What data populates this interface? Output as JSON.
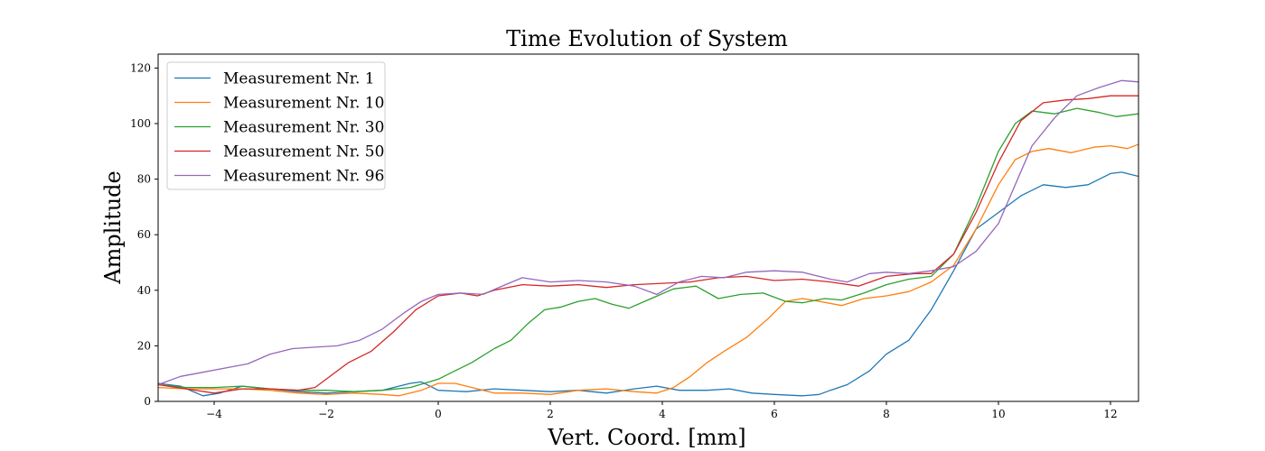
{
  "chart_data": {
    "type": "line",
    "title": "Time Evolution of System",
    "xlabel": "Vert. Coord. [mm]",
    "ylabel": "Amplitude",
    "xlim": [
      -5,
      12.5
    ],
    "ylim": [
      0,
      125
    ],
    "xticks": [
      -4,
      -2,
      0,
      2,
      4,
      6,
      8,
      10,
      12
    ],
    "yticks": [
      0,
      20,
      40,
      60,
      80,
      100,
      120
    ],
    "grid": false,
    "legend_position": "top-left",
    "series": [
      {
        "name": "Measurement Nr. 1",
        "color": "#1f77b4",
        "points": [
          [
            -5,
            6.5
          ],
          [
            -4.6,
            5.5
          ],
          [
            -4.2,
            2
          ],
          [
            -3.9,
            3
          ],
          [
            -3.5,
            5.5
          ],
          [
            -3,
            4.5
          ],
          [
            -2.5,
            3.5
          ],
          [
            -2,
            3
          ],
          [
            -1.5,
            3.5
          ],
          [
            -1,
            4
          ],
          [
            -0.5,
            6.5
          ],
          [
            -0.3,
            7
          ],
          [
            0,
            4
          ],
          [
            0.5,
            3.5
          ],
          [
            1,
            4.5
          ],
          [
            1.5,
            4
          ],
          [
            2,
            3.5
          ],
          [
            2.5,
            4
          ],
          [
            3,
            3
          ],
          [
            3.5,
            4.5
          ],
          [
            3.9,
            5.5
          ],
          [
            4.3,
            4
          ],
          [
            4.8,
            4
          ],
          [
            5.2,
            4.5
          ],
          [
            5.6,
            3
          ],
          [
            6,
            2.5
          ],
          [
            6.5,
            2
          ],
          [
            6.8,
            2.5
          ],
          [
            7,
            4
          ],
          [
            7.3,
            6
          ],
          [
            7.7,
            11
          ],
          [
            8,
            17
          ],
          [
            8.4,
            22
          ],
          [
            8.8,
            33
          ],
          [
            9.2,
            47
          ],
          [
            9.6,
            62
          ],
          [
            10,
            68
          ],
          [
            10.4,
            74
          ],
          [
            10.8,
            78
          ],
          [
            11.2,
            77
          ],
          [
            11.6,
            78
          ],
          [
            12,
            82
          ],
          [
            12.2,
            82.5
          ],
          [
            12.5,
            81
          ]
        ]
      },
      {
        "name": "Measurement Nr. 10",
        "color": "#ff7f0e",
        "points": [
          [
            -5,
            5
          ],
          [
            -4.5,
            4.5
          ],
          [
            -4,
            4.5
          ],
          [
            -3.5,
            4.5
          ],
          [
            -3,
            4
          ],
          [
            -2.5,
            3
          ],
          [
            -2,
            2.5
          ],
          [
            -1.5,
            3
          ],
          [
            -1,
            2.5
          ],
          [
            -0.7,
            2
          ],
          [
            -0.3,
            4
          ],
          [
            0,
            6.5
          ],
          [
            0.3,
            6.5
          ],
          [
            0.6,
            5
          ],
          [
            1,
            3
          ],
          [
            1.5,
            3
          ],
          [
            2,
            2.5
          ],
          [
            2.5,
            4
          ],
          [
            3,
            4.5
          ],
          [
            3.5,
            3.5
          ],
          [
            3.9,
            3
          ],
          [
            4.2,
            5
          ],
          [
            4.5,
            9
          ],
          [
            4.8,
            14
          ],
          [
            5.1,
            18
          ],
          [
            5.5,
            23
          ],
          [
            5.9,
            30
          ],
          [
            6.2,
            36
          ],
          [
            6.5,
            37
          ],
          [
            6.8,
            36
          ],
          [
            7.2,
            34.5
          ],
          [
            7.6,
            37
          ],
          [
            8,
            38
          ],
          [
            8.4,
            39.5
          ],
          [
            8.8,
            43
          ],
          [
            9.2,
            49
          ],
          [
            9.6,
            62
          ],
          [
            10,
            78
          ],
          [
            10.3,
            87
          ],
          [
            10.6,
            90
          ],
          [
            10.9,
            91
          ],
          [
            11.3,
            89.5
          ],
          [
            11.7,
            91.5
          ],
          [
            12,
            92
          ],
          [
            12.3,
            91
          ],
          [
            12.5,
            92.5
          ]
        ]
      },
      {
        "name": "Measurement Nr. 30",
        "color": "#2ca02c",
        "points": [
          [
            -5,
            6
          ],
          [
            -4.5,
            5
          ],
          [
            -4,
            5
          ],
          [
            -3.5,
            5.5
          ],
          [
            -3,
            4.5
          ],
          [
            -2.5,
            4
          ],
          [
            -2,
            4
          ],
          [
            -1.5,
            3.5
          ],
          [
            -1,
            4
          ],
          [
            -0.5,
            5
          ],
          [
            0,
            8
          ],
          [
            0.3,
            11
          ],
          [
            0.6,
            14
          ],
          [
            1,
            19
          ],
          [
            1.3,
            22
          ],
          [
            1.6,
            28
          ],
          [
            1.9,
            33
          ],
          [
            2.2,
            34
          ],
          [
            2.5,
            36
          ],
          [
            2.8,
            37
          ],
          [
            3.1,
            35
          ],
          [
            3.4,
            33.5
          ],
          [
            3.8,
            37
          ],
          [
            4.2,
            40.5
          ],
          [
            4.6,
            41.5
          ],
          [
            5,
            37
          ],
          [
            5.4,
            38.5
          ],
          [
            5.8,
            39
          ],
          [
            6.2,
            36
          ],
          [
            6.5,
            35.5
          ],
          [
            6.9,
            37
          ],
          [
            7.2,
            36.5
          ],
          [
            7.6,
            39
          ],
          [
            8,
            42
          ],
          [
            8.4,
            44
          ],
          [
            8.8,
            45
          ],
          [
            9.2,
            53
          ],
          [
            9.6,
            70
          ],
          [
            10,
            90
          ],
          [
            10.3,
            100
          ],
          [
            10.6,
            104.5
          ],
          [
            11,
            103.5
          ],
          [
            11.4,
            105.5
          ],
          [
            11.8,
            104
          ],
          [
            12.1,
            102.5
          ],
          [
            12.5,
            103.5
          ]
        ]
      },
      {
        "name": "Measurement Nr. 50",
        "color": "#d62728",
        "points": [
          [
            -5,
            6
          ],
          [
            -4.5,
            4.5
          ],
          [
            -4,
            3
          ],
          [
            -3.5,
            4.5
          ],
          [
            -3,
            4.5
          ],
          [
            -2.5,
            4
          ],
          [
            -2.2,
            5
          ],
          [
            -2,
            8
          ],
          [
            -1.6,
            14
          ],
          [
            -1.2,
            18
          ],
          [
            -0.8,
            25
          ],
          [
            -0.4,
            33
          ],
          [
            0,
            38
          ],
          [
            0.4,
            39
          ],
          [
            0.7,
            38
          ],
          [
            1,
            40
          ],
          [
            1.5,
            42
          ],
          [
            2,
            41.5
          ],
          [
            2.5,
            42
          ],
          [
            3,
            41
          ],
          [
            3.5,
            42
          ],
          [
            4,
            42.5
          ],
          [
            4.5,
            43
          ],
          [
            5,
            44.5
          ],
          [
            5.5,
            45
          ],
          [
            6,
            43.5
          ],
          [
            6.5,
            44
          ],
          [
            7,
            43
          ],
          [
            7.5,
            41.5
          ],
          [
            8,
            45
          ],
          [
            8.5,
            46
          ],
          [
            8.8,
            46
          ],
          [
            9.2,
            53
          ],
          [
            9.6,
            68
          ],
          [
            10,
            86
          ],
          [
            10.4,
            101
          ],
          [
            10.8,
            107.5
          ],
          [
            11.2,
            108.5
          ],
          [
            11.6,
            109
          ],
          [
            12,
            110
          ],
          [
            12.5,
            110
          ]
        ]
      },
      {
        "name": "Measurement Nr. 96",
        "color": "#9467bd",
        "points": [
          [
            -5,
            6
          ],
          [
            -4.6,
            9
          ],
          [
            -4.2,
            10.5
          ],
          [
            -3.8,
            12
          ],
          [
            -3.4,
            13.5
          ],
          [
            -3,
            17
          ],
          [
            -2.6,
            19
          ],
          [
            -2.2,
            19.5
          ],
          [
            -1.8,
            20
          ],
          [
            -1.4,
            22
          ],
          [
            -1,
            26
          ],
          [
            -0.6,
            32
          ],
          [
            -0.3,
            36
          ],
          [
            0,
            38.5
          ],
          [
            0.4,
            39
          ],
          [
            0.8,
            38.5
          ],
          [
            1.2,
            42
          ],
          [
            1.5,
            44.5
          ],
          [
            2,
            43
          ],
          [
            2.5,
            43.5
          ],
          [
            3,
            43
          ],
          [
            3.5,
            41.5
          ],
          [
            3.9,
            38.5
          ],
          [
            4.3,
            43
          ],
          [
            4.7,
            45
          ],
          [
            5.1,
            44.5
          ],
          [
            5.5,
            46.5
          ],
          [
            6,
            47
          ],
          [
            6.5,
            46.5
          ],
          [
            7,
            44
          ],
          [
            7.3,
            43
          ],
          [
            7.7,
            46
          ],
          [
            8,
            46.5
          ],
          [
            8.4,
            46
          ],
          [
            8.8,
            47
          ],
          [
            9.2,
            48.5
          ],
          [
            9.6,
            54
          ],
          [
            10,
            64
          ],
          [
            10.3,
            78
          ],
          [
            10.6,
            92
          ],
          [
            11,
            102
          ],
          [
            11.4,
            110
          ],
          [
            11.8,
            113
          ],
          [
            12.2,
            115.5
          ],
          [
            12.5,
            115
          ]
        ]
      }
    ]
  }
}
